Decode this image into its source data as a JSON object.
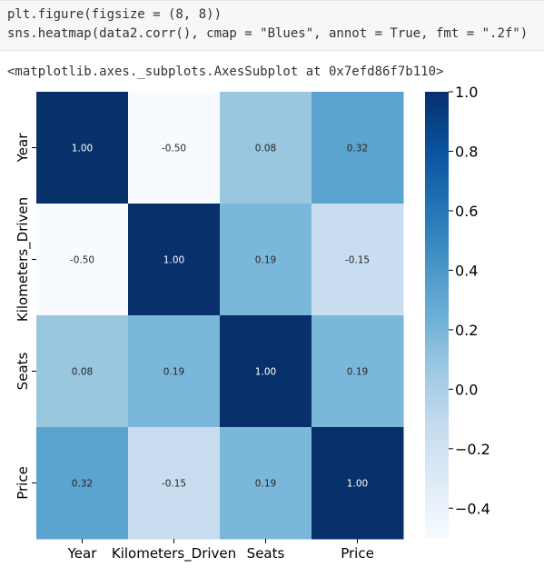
{
  "code_cell": {
    "line1": "plt.figure(figsize = (8, 8))",
    "line2": "sns.heatmap(data2.corr(), cmap = \"Blues\", annot = True, fmt = \".2f\")"
  },
  "output": {
    "text": "<matplotlib.axes._subplots.AxesSubplot at 0x7efd86f7b110>"
  },
  "chart_data": {
    "type": "heatmap",
    "title": "",
    "cmap": "Blues",
    "annot_format": ".2f",
    "rows": [
      "Year",
      "Kilometers_Driven",
      "Seats",
      "Price"
    ],
    "columns": [
      "Year",
      "Kilometers_Driven",
      "Seats",
      "Price"
    ],
    "values": [
      [
        1.0,
        -0.5,
        0.08,
        0.32
      ],
      [
        -0.5,
        1.0,
        0.19,
        -0.15
      ],
      [
        0.08,
        0.19,
        1.0,
        0.19
      ],
      [
        0.32,
        -0.15,
        0.19,
        1.0
      ]
    ],
    "colorbar": {
      "range": [
        -0.5,
        1.0
      ],
      "ticks": [
        1.0,
        0.8,
        0.6,
        0.4,
        0.2,
        0.0,
        -0.2,
        -0.4
      ],
      "tick_labels": [
        "1.0",
        "0.8",
        "0.6",
        "0.4",
        "0.2",
        "0.0",
        "−0.2",
        "−0.4"
      ]
    },
    "colors": {
      "low": "#f7fbff",
      "high": "#08306b"
    }
  }
}
